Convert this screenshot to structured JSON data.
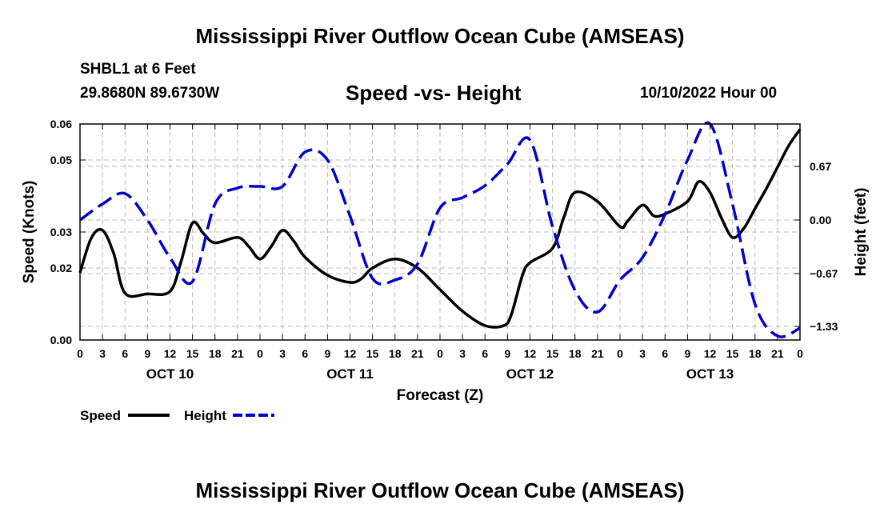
{
  "header": {
    "title": "Mississippi River Outflow Ocean Cube (AMSEAS)",
    "station": "SHBL1 at 6 Feet",
    "coords": "29.8680N  89.6730W",
    "subtitle": "Speed -vs- Height",
    "datetime": "10/10/2022 Hour 00"
  },
  "footer": {
    "title": "Mississippi River Outflow Ocean Cube (AMSEAS)"
  },
  "legend": {
    "speed_label": "Speed",
    "height_label": "Height"
  },
  "chart_data": {
    "type": "line",
    "title": "Speed -vs- Height",
    "xlabel": "Forecast (Z)",
    "ylabel": "Speed (Knots)",
    "y2label": "Height (feet)",
    "x_range_hours": [
      0,
      96
    ],
    "ylim": [
      0,
      0.06
    ],
    "y2lim": [
      -1.5,
      1.2
    ],
    "y_ticks": [
      0,
      0.02,
      0.03,
      0.05,
      0.06
    ],
    "y_tick_labels": [
      "0.00",
      "0.02",
      "0.03",
      "0.05",
      "0.06"
    ],
    "y2_ticks": [
      -1.33,
      -0.67,
      0.0,
      0.67
    ],
    "y2_tick_labels": [
      "−1.33",
      "−0.67",
      "0.00",
      "0.67"
    ],
    "x_ticks": [
      0,
      3,
      6,
      9,
      12,
      15,
      18,
      21,
      24,
      27,
      30,
      33,
      36,
      39,
      42,
      45,
      48,
      51,
      54,
      57,
      60,
      63,
      66,
      69,
      72,
      75,
      78,
      81,
      84,
      87,
      90,
      93,
      96
    ],
    "x_tick_labels": [
      "0",
      "3",
      "6",
      "9",
      "12",
      "15",
      "18",
      "21",
      "0",
      "3",
      "6",
      "9",
      "12",
      "15",
      "18",
      "21",
      "0",
      "3",
      "6",
      "9",
      "12",
      "15",
      "18",
      "21",
      "0",
      "3",
      "6",
      "9",
      "12",
      "15",
      "18",
      "21",
      "0"
    ],
    "day_labels": [
      {
        "hour": 12,
        "label": "OCT 10"
      },
      {
        "hour": 36,
        "label": "OCT 11"
      },
      {
        "hour": 60,
        "label": "OCT 12"
      },
      {
        "hour": 84,
        "label": "OCT 13"
      }
    ],
    "series": [
      {
        "name": "Speed",
        "axis": "left",
        "color": "#000000",
        "dash": false,
        "hours": [
          0,
          1.5,
          3,
          4.5,
          6,
          9,
          12,
          13.5,
          15,
          16.5,
          18,
          21,
          22.5,
          24,
          25.5,
          27,
          28.5,
          30,
          33,
          36,
          37.5,
          39,
          42,
          45,
          48,
          51,
          54,
          56.5,
          57.5,
          59,
          60,
          63,
          64.5,
          66,
          69,
          72,
          73,
          75,
          76.5,
          78,
          81,
          82.5,
          84,
          85.5,
          87,
          88.5,
          90,
          91.5,
          93,
          94.5,
          96
        ],
        "values": [
          0.0187,
          0.0283,
          0.0305,
          0.024,
          0.013,
          0.0128,
          0.0135,
          0.022,
          0.0325,
          0.0295,
          0.027,
          0.0285,
          0.026,
          0.0225,
          0.026,
          0.0305,
          0.0275,
          0.023,
          0.018,
          0.016,
          0.017,
          0.02,
          0.0225,
          0.02,
          0.014,
          0.008,
          0.004,
          0.004,
          0.007,
          0.018,
          0.0215,
          0.0255,
          0.034,
          0.041,
          0.0385,
          0.0315,
          0.033,
          0.0375,
          0.0345,
          0.035,
          0.0385,
          0.044,
          0.041,
          0.034,
          0.0285,
          0.031,
          0.0365,
          0.042,
          0.048,
          0.054,
          0.0585
        ]
      },
      {
        "name": "Height",
        "axis": "right",
        "color": "#0000cc",
        "dash": true,
        "hours": [
          0,
          3,
          6,
          9,
          12,
          15,
          18,
          21,
          24,
          27,
          30,
          33,
          36,
          39,
          42,
          45,
          48,
          51,
          54,
          57,
          60,
          63,
          66,
          69,
          72,
          75,
          78,
          81,
          84,
          87,
          90,
          93,
          96
        ],
        "values": [
          0.0,
          0.2,
          0.33,
          0.0,
          -0.47,
          -0.77,
          0.2,
          0.4,
          0.42,
          0.42,
          0.85,
          0.75,
          0.05,
          -0.73,
          -0.75,
          -0.55,
          0.15,
          0.28,
          0.43,
          0.7,
          1.0,
          -0.08,
          -0.88,
          -1.15,
          -0.75,
          -0.47,
          0.07,
          0.75,
          1.2,
          0.2,
          -1.05,
          -1.45,
          -1.35
        ]
      }
    ]
  }
}
